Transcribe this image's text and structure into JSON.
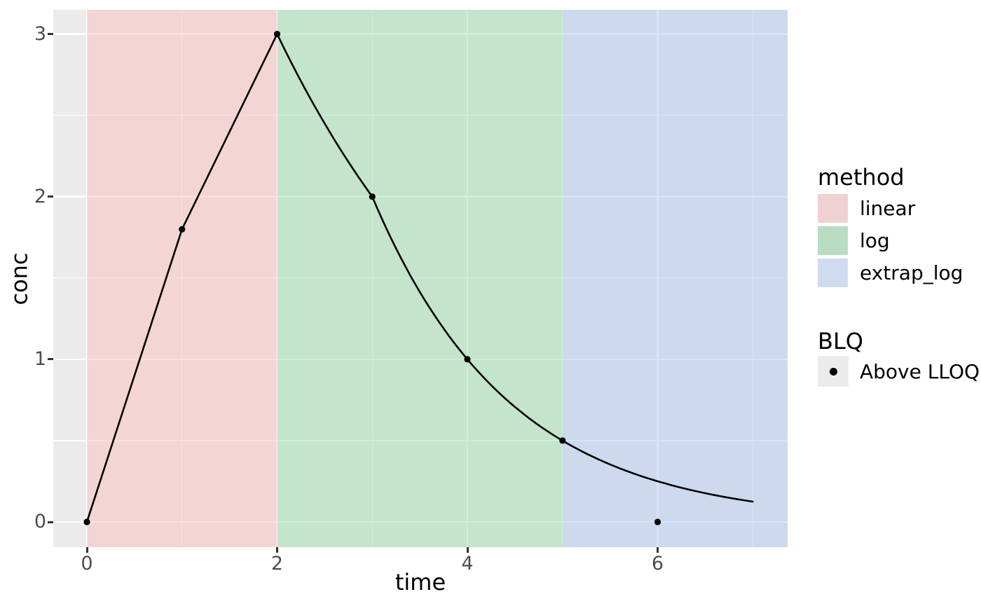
{
  "axes": {
    "x": {
      "title": "time",
      "tick_labels": [
        "0",
        "2",
        "4",
        "6"
      ]
    },
    "y": {
      "title": "conc",
      "tick_labels": [
        "0",
        "1",
        "2",
        "3"
      ]
    }
  },
  "chart_data": {
    "type": "line",
    "title": "",
    "xlabel": "time",
    "ylabel": "conc",
    "x_ticks": [
      0,
      2,
      4,
      6
    ],
    "y_ticks": [
      0,
      1,
      2,
      3
    ],
    "x_minor_ticks": [
      1,
      3,
      5,
      7
    ],
    "y_minor_ticks": [
      0.5,
      1.5,
      2.5
    ],
    "x_range_shown": [
      -0.35,
      7.37
    ],
    "y_range_shown": [
      -0.16,
      3.15
    ],
    "grid": "on",
    "legend_position": "right",
    "points": [
      [
        0,
        0
      ],
      [
        1,
        1.8
      ],
      [
        2,
        3
      ],
      [
        3,
        2
      ],
      [
        4,
        1
      ],
      [
        5,
        0.5
      ],
      [
        6,
        0
      ]
    ],
    "curve": {
      "linear_segment_points": [
        [
          0,
          0
        ],
        [
          1,
          1.8
        ],
        [
          2,
          3
        ]
      ],
      "log_decay_knots": [
        [
          2,
          3
        ],
        [
          3,
          2
        ],
        [
          4,
          1
        ],
        [
          5,
          0.5
        ]
      ],
      "extrapolation": {
        "start": [
          5,
          0.5
        ],
        "end_t": 7,
        "model": "c = 0.5*exp(-k*(t-5))",
        "k": 0.693
      }
    },
    "auc_method_regions": [
      {
        "method": "linear",
        "t_from": 0,
        "t_to": 2
      },
      {
        "method": "log",
        "t_from": 2,
        "t_to": 5
      },
      {
        "method": "extrap_log",
        "t_from": 5,
        "t_to": null
      }
    ]
  },
  "legend": {
    "method": {
      "title": "method",
      "items": [
        {
          "label": "linear",
          "color": "#f0d1d2"
        },
        {
          "label": "log",
          "color": "#b9dcc2"
        },
        {
          "label": "extrap_log",
          "color": "#cfdcef"
        }
      ]
    },
    "blq": {
      "title": "BLQ",
      "items": [
        {
          "label": "Above LLOQ",
          "marker": "point-icon",
          "marker_color": "#000000"
        }
      ]
    }
  },
  "colors": {
    "panel_background": "#ebebeb",
    "gridline": "#ffffff",
    "region_linear": "rgba(251,191,191,0.5)",
    "region_log": "rgba(158,222,174,0.5)",
    "region_extrap_log": "rgba(175,199,237,0.5)",
    "curve": "#000000",
    "point": "#000000",
    "tick_mark": "#333333",
    "tick_label": "#4d4d4d"
  }
}
